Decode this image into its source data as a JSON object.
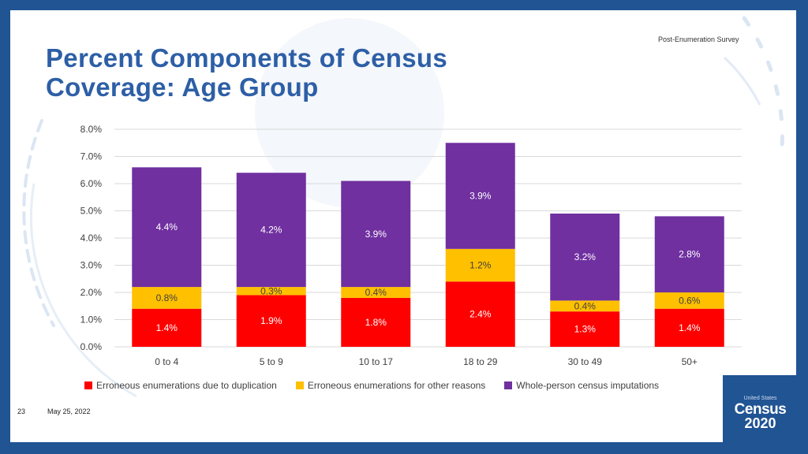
{
  "header": {
    "survey_label": "Post-Enumeration  Survey",
    "title_line1": "Percent Components of Census",
    "title_line2": "Coverage: Age Group"
  },
  "footer": {
    "slide_number": "23",
    "date": "May 25, 2022"
  },
  "logo": {
    "line1": "United States",
    "line2": "Census",
    "line3": "2020"
  },
  "chart_data": {
    "type": "bar",
    "stacked": true,
    "categories": [
      "0 to 4",
      "5 to 9",
      "10 to 17",
      "18 to 29",
      "30 to 49",
      "50+"
    ],
    "series": [
      {
        "name": "Erroneous enumerations due to duplication",
        "color": "#ff0000",
        "values": [
          1.4,
          1.9,
          1.8,
          2.4,
          1.3,
          1.4
        ],
        "labels": [
          "1.4%",
          "1.9%",
          "1.8%",
          "2.4%",
          "1.3%",
          "1.4%"
        ]
      },
      {
        "name": "Erroneous enumerations for other reasons",
        "color": "#ffc000",
        "values": [
          0.8,
          0.3,
          0.4,
          1.2,
          0.4,
          0.6
        ],
        "labels": [
          "0.8%",
          "0.3%",
          "0.4%",
          "1.2%",
          "0.4%",
          "0.6%"
        ]
      },
      {
        "name": "Whole-person census imputations",
        "color": "#7030a0",
        "values": [
          4.4,
          4.2,
          3.9,
          3.9,
          3.2,
          2.8
        ],
        "labels": [
          "4.4%",
          "4.2%",
          "3.9%",
          "3.9%",
          "3.2%",
          "2.8%"
        ]
      }
    ],
    "y_ticks": [
      "0.0%",
      "1.0%",
      "2.0%",
      "3.0%",
      "4.0%",
      "5.0%",
      "6.0%",
      "7.0%",
      "8.0%"
    ],
    "ylim": [
      0,
      8
    ],
    "grid": true,
    "legend_position": "bottom"
  }
}
